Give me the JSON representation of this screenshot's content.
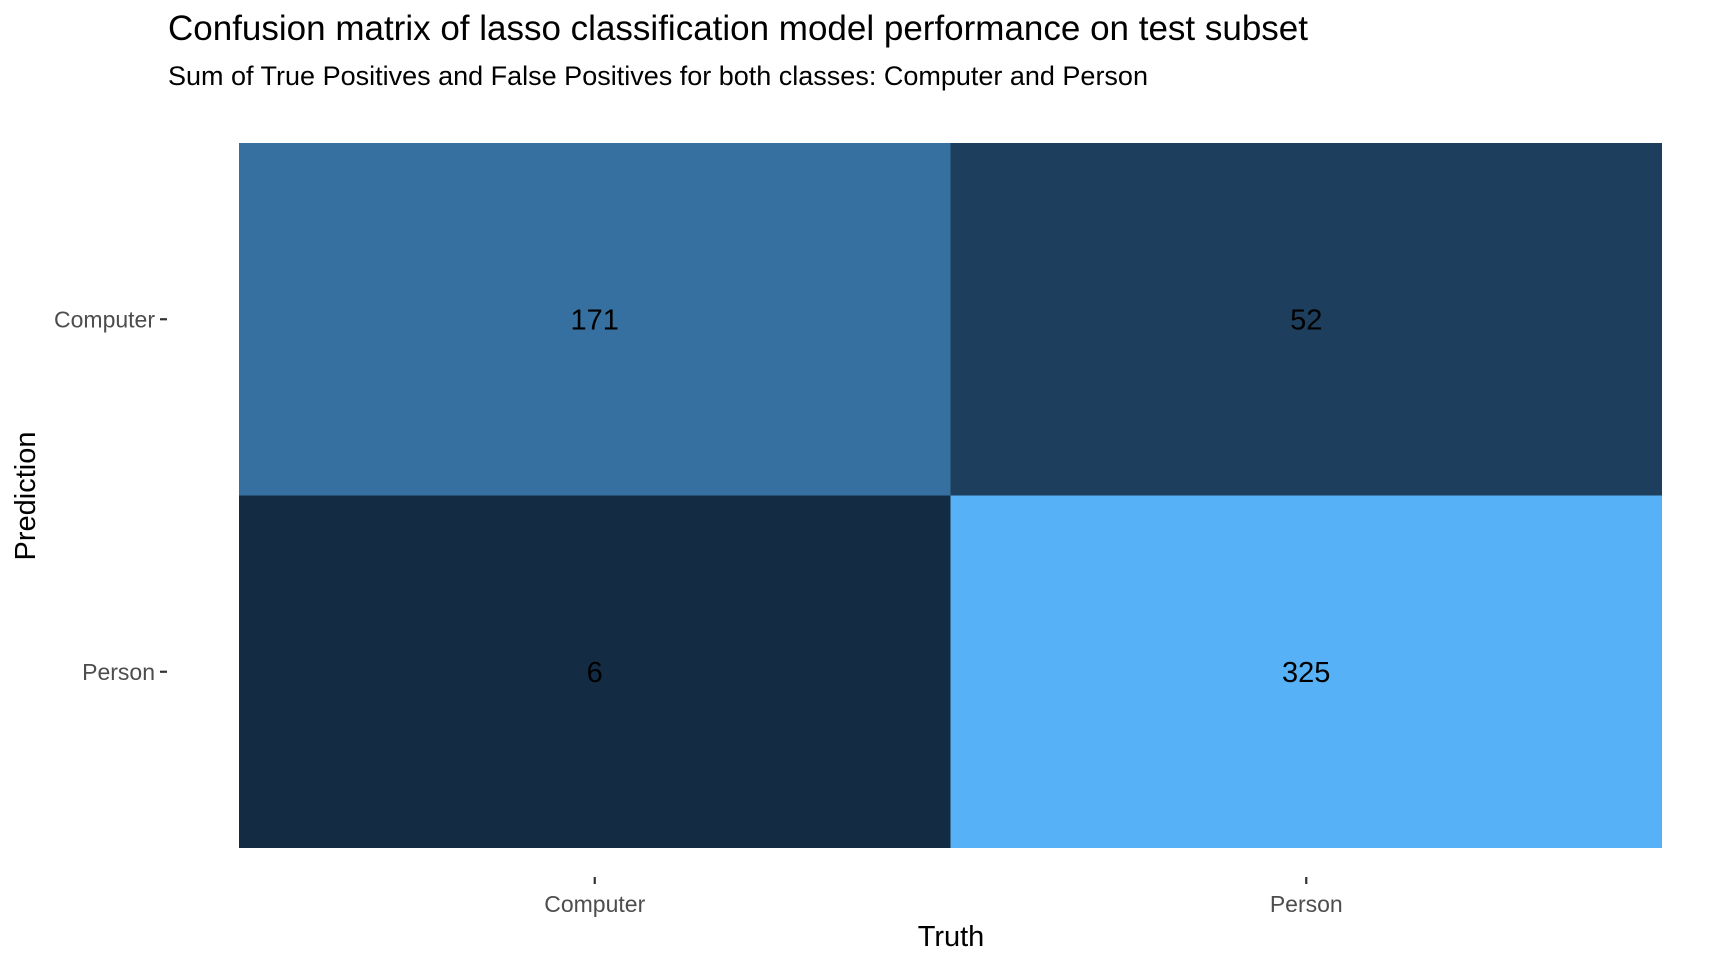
{
  "chart_data": {
    "type": "heatmap",
    "title": "Confusion matrix of lasso classification model performance on test subset",
    "subtitle": "Sum of True Positives and False Positives for both classes: Computer and Person",
    "xlabel": "Truth",
    "ylabel": "Prediction",
    "x_categories": [
      "Computer",
      "Person"
    ],
    "y_categories": [
      "Computer",
      "Person"
    ],
    "cells": [
      {
        "prediction": "Computer",
        "truth": "Computer",
        "value": 171
      },
      {
        "prediction": "Computer",
        "truth": "Person",
        "value": 52
      },
      {
        "prediction": "Person",
        "truth": "Computer",
        "value": 6
      },
      {
        "prediction": "Person",
        "truth": "Person",
        "value": 325
      }
    ],
    "value_range": [
      6,
      325
    ],
    "colors": {
      "low": "#132B43",
      "high": "#56B1F7"
    },
    "grid": false,
    "legend": "none"
  }
}
